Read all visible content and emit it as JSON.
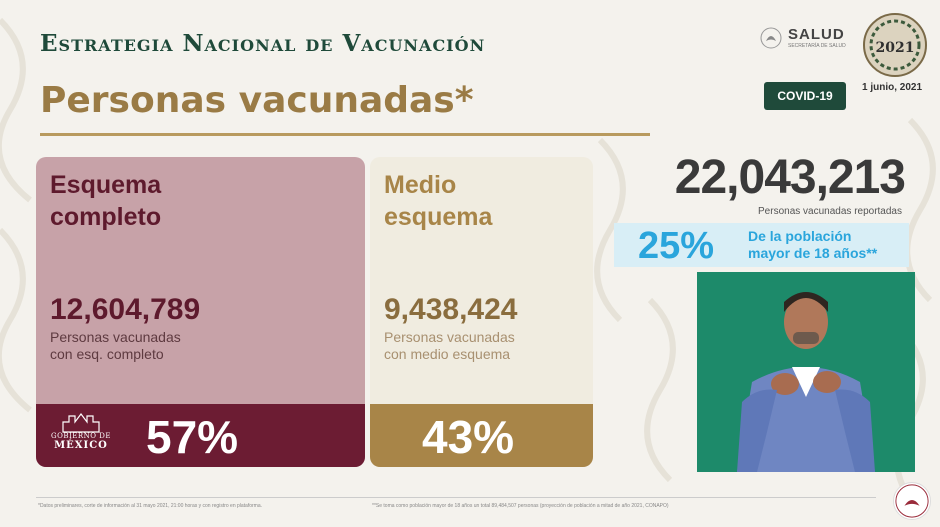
{
  "header": {
    "strategy_title": "Estrategia Nacional de Vacunación",
    "page_title": "Personas vacunadas*"
  },
  "branding": {
    "salud_label": "SALUD",
    "salud_sub": "SECRETARÍA DE SALUD",
    "covid_badge": "COVID-19",
    "date": "1 junio, 2021"
  },
  "cards": {
    "complete": {
      "heading_line1": "Esquema",
      "heading_line2": "completo",
      "number": "12,604,789",
      "desc_line1": "Personas vacunadas",
      "desc_line2": "con esq. completo",
      "percent": "57%",
      "color": "#6c1c33"
    },
    "half": {
      "heading_line1": "Medio",
      "heading_line2": "esquema",
      "number": "9,438,424",
      "desc_line1": "Personas vacunadas",
      "desc_line2": "con medio esquema",
      "percent": "43%",
      "color": "#a88548"
    }
  },
  "totals": {
    "number": "22,043,213",
    "label": "Personas vacunadas reportadas",
    "pop_percent": "25%",
    "pop_text_line1": "De la población",
    "pop_text_line2": "mayor de 18 años**",
    "pop_color": "#2aa5dc"
  },
  "footer": {
    "gob_line1": "GOBIERNO DE",
    "gob_line2": "MÉXICO",
    "note_left": "*Datos preliminares, corte de información al 31 mayo 2021, 21:00 horas y con registro en plataforma.",
    "note_right": "**Se toma como población mayor de 18 años un total 89,484,507 personas (proyección de población a mitad de año 2021, CONAPO)"
  }
}
